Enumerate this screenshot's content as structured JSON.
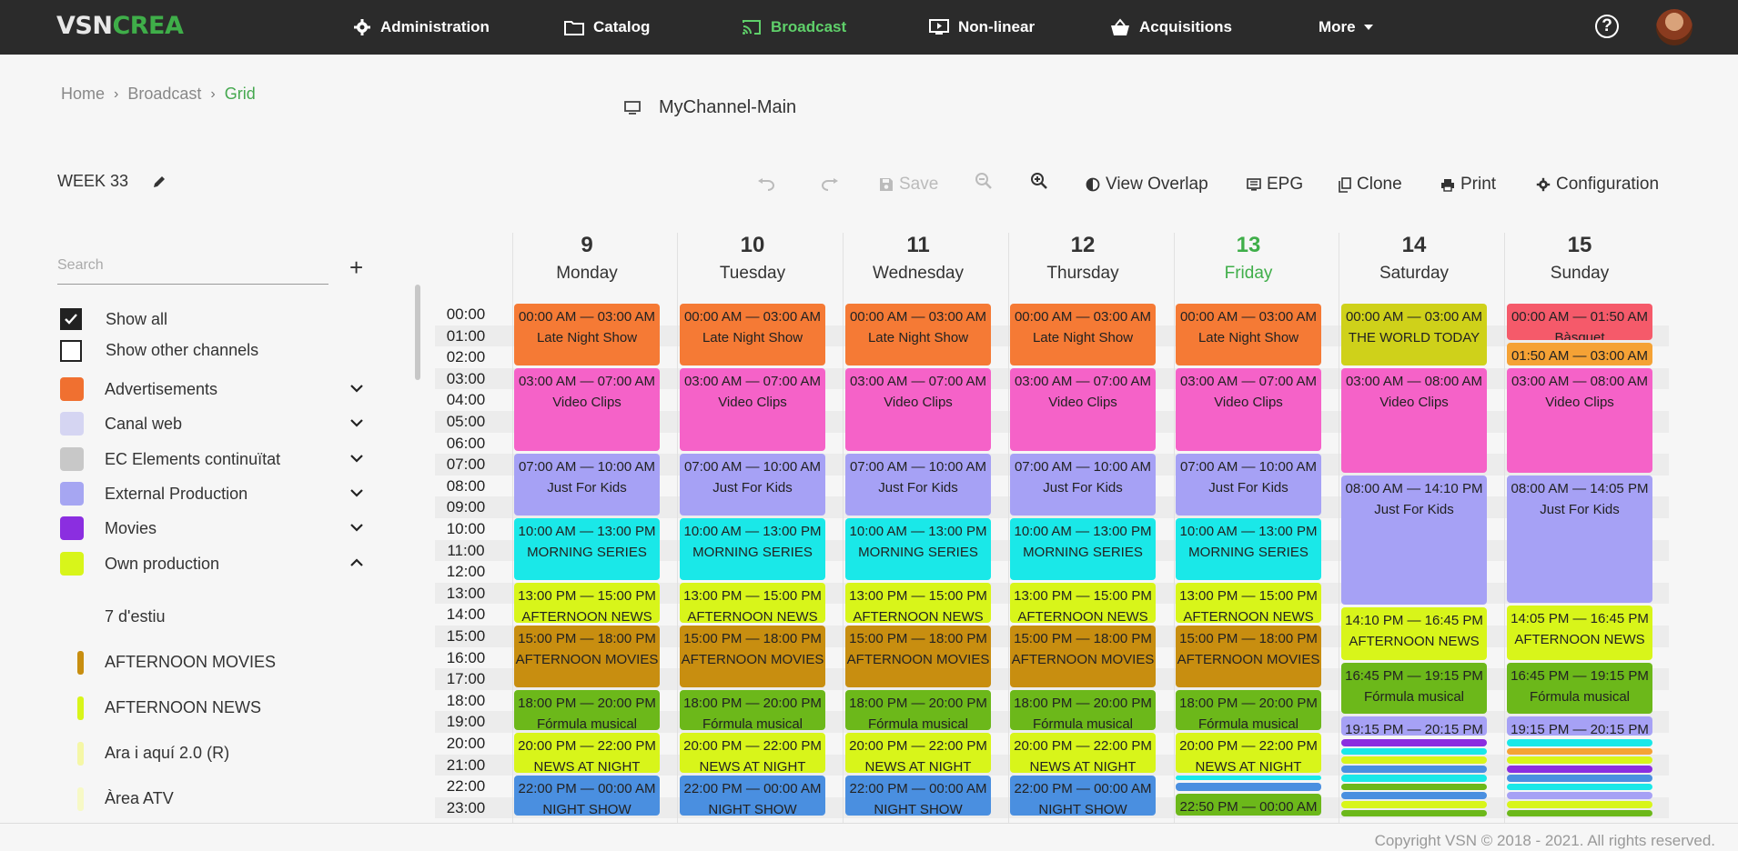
{
  "app": {
    "logo_left": "VSN",
    "logo_right": "CREA",
    "nav": [
      {
        "label": "Administration",
        "icon": "gear-icon"
      },
      {
        "label": "Catalog",
        "icon": "folder-icon"
      },
      {
        "label": "Broadcast",
        "icon": "cast-icon",
        "active": true
      },
      {
        "label": "Non-linear",
        "icon": "play-screen-icon"
      },
      {
        "label": "Acquisitions",
        "icon": "basket-icon"
      },
      {
        "label": "More",
        "icon": "caret-down-icon"
      }
    ],
    "help_label": "?"
  },
  "breadcrumb": {
    "home": "Home",
    "section": "Broadcast",
    "current": "Grid"
  },
  "channel": "MyChannel-Main",
  "week_label": "WEEK 33",
  "toolbar": {
    "save": "Save",
    "view_overlap": "View Overlap",
    "epg": "EPG",
    "clone": "Clone",
    "print": "Print",
    "configuration": "Configuration"
  },
  "sidebar": {
    "search_placeholder": "Search",
    "show_all": "Show all",
    "show_other_channels": "Show other channels",
    "categories": [
      {
        "label": "Advertisements",
        "color": "#f07030",
        "expanded": false
      },
      {
        "label": "Canal web",
        "color": "#d5d5f2",
        "expanded": false
      },
      {
        "label": "EC Elements continuïtat",
        "color": "#c8c8c8",
        "expanded": false
      },
      {
        "label": "External Production",
        "color": "#a6a6f2",
        "expanded": false
      },
      {
        "label": "Movies",
        "color": "#8b2ee0",
        "expanded": false
      },
      {
        "label": "Own production",
        "color": "#d8f51a",
        "expanded": true
      }
    ],
    "programs": [
      {
        "label": "7 d'estiu",
        "color": ""
      },
      {
        "label": "AFTERNOON MOVIES",
        "color": "#c88e10"
      },
      {
        "label": "AFTERNOON NEWS",
        "color": "#d8f51a"
      },
      {
        "label": "Ara i aquí 2.0 (R)",
        "color": "#f5f7a6"
      },
      {
        "label": "Àrea ATV",
        "color": "#f7f9c6"
      }
    ]
  },
  "grid": {
    "days": [
      {
        "num": "9",
        "name": "Monday"
      },
      {
        "num": "10",
        "name": "Tuesday"
      },
      {
        "num": "11",
        "name": "Wednesday"
      },
      {
        "num": "12",
        "name": "Thursday"
      },
      {
        "num": "13",
        "name": "Friday",
        "today": true
      },
      {
        "num": "14",
        "name": "Saturday"
      },
      {
        "num": "15",
        "name": "Sunday"
      }
    ],
    "hours": [
      "00:00",
      "01:00",
      "02:00",
      "03:00",
      "04:00",
      "05:00",
      "06:00",
      "07:00",
      "08:00",
      "09:00",
      "10:00",
      "11:00",
      "12:00",
      "13:00",
      "14:00",
      "15:00",
      "16:00",
      "17:00",
      "18:00",
      "19:00",
      "20:00",
      "21:00",
      "22:00",
      "23:00"
    ],
    "weekday_events": [
      {
        "start": 0,
        "end": 3,
        "time": "00:00 AM — 03:00 AM",
        "title": "Late Night Show",
        "color": "#f57a35"
      },
      {
        "start": 3,
        "end": 7,
        "time": "03:00 AM — 07:00 AM",
        "title": "Video Clips",
        "color": "#f562c8"
      },
      {
        "start": 7,
        "end": 10,
        "time": "07:00 AM — 10:00 AM",
        "title": "Just For Kids",
        "color": "#a6a1f5"
      },
      {
        "start": 10,
        "end": 13,
        "time": "10:00 AM — 13:00 PM",
        "title": "MORNING SERIES",
        "color": "#1ae8e8"
      },
      {
        "start": 13,
        "end": 15,
        "time": "13:00 PM — 15:00 PM",
        "title": "AFTERNOON NEWS",
        "color": "#d8f51a"
      },
      {
        "start": 15,
        "end": 18,
        "time": "15:00 PM — 18:00 PM",
        "title": "AFTERNOON MOVIES",
        "color": "#c88e10"
      },
      {
        "start": 18,
        "end": 20,
        "time": "18:00 PM — 20:00 PM",
        "title": "Fórmula musical",
        "color": "#6cb81a"
      },
      {
        "start": 20,
        "end": 22,
        "time": "20:00 PM — 22:00 PM",
        "title": "NEWS AT NIGHT",
        "color": "#d8f51a"
      },
      {
        "start": 22,
        "end": 24,
        "time": "22:00 PM — 00:00 AM",
        "title": "NIGHT SHOW",
        "color": "#4a8fe0"
      }
    ],
    "friday_extra": [
      {
        "start": 22,
        "end": 22.33,
        "time": "",
        "title": "",
        "color": "#1ae8e8"
      },
      {
        "start": 22.33,
        "end": 22.83,
        "time": "",
        "title": "",
        "color": "#4a8fe0"
      },
      {
        "start": 22.83,
        "end": 24,
        "time": "22:50 PM — 00:00 AM",
        "title": "",
        "color": "#6cb81a"
      }
    ],
    "saturday_events": [
      {
        "start": 0,
        "end": 3,
        "time": "00:00 AM — 03:00 AM",
        "title": "THE WORLD TODAY",
        "color": "#cfd11a"
      },
      {
        "start": 3,
        "end": 8,
        "time": "03:00 AM — 08:00 AM",
        "title": "Video Clips",
        "color": "#f562c8"
      },
      {
        "start": 8,
        "end": 14.17,
        "time": "08:00 AM — 14:10 PM",
        "title": "Just For Kids",
        "color": "#a6a1f5"
      },
      {
        "start": 14.17,
        "end": 16.75,
        "time": "14:10 PM — 16:45 PM",
        "title": "AFTERNOON NEWS",
        "color": "#d8f51a"
      },
      {
        "start": 16.75,
        "end": 19.25,
        "time": "16:45 PM — 19:15 PM",
        "title": "Fórmula musical",
        "color": "#6cb81a"
      },
      {
        "start": 19.25,
        "end": 20.25,
        "time": "19:15 PM — 20:15 PM",
        "title": "",
        "color": "#a6a1f5"
      }
    ],
    "sunday_events": [
      {
        "start": 0,
        "end": 1.83,
        "time": "00:00 AM — 01:50 AM",
        "title": "Bàsquet",
        "color": "#f55a6a"
      },
      {
        "start": 1.83,
        "end": 3,
        "time": "01:50 AM — 03:00 AM",
        "title": "",
        "color": "#f5a235"
      },
      {
        "start": 3,
        "end": 8,
        "time": "03:00 AM — 08:00 AM",
        "title": "Video Clips",
        "color": "#f562c8"
      },
      {
        "start": 8,
        "end": 14.08,
        "time": "08:00 AM — 14:05 PM",
        "title": "Just For Kids",
        "color": "#a6a1f5"
      },
      {
        "start": 14.08,
        "end": 16.75,
        "time": "14:05 PM — 16:45 PM",
        "title": "AFTERNOON NEWS",
        "color": "#d8f51a"
      },
      {
        "start": 16.75,
        "end": 19.25,
        "time": "16:45 PM — 19:15 PM",
        "title": "Fórmula musical",
        "color": "#6cb81a"
      },
      {
        "start": 19.25,
        "end": 20.25,
        "time": "19:15 PM — 20:15 PM",
        "title": "",
        "color": "#a6a1f5"
      }
    ],
    "saturday_tail_colors": [
      "#8b2ee0",
      "#1ae8e8",
      "#d8f51a",
      "#4a8fe0",
      "#1ae8e8",
      "#6cb81a",
      "#4a8fe0",
      "#d8f51a",
      "#6cb81a"
    ],
    "sunday_tail_colors": [
      "#1ae8e8",
      "#f5a235",
      "#d8f51a",
      "#8b2ee0",
      "#4a8fe0",
      "#1ae8e8",
      "#a6a1f5",
      "#d8f51a",
      "#6cb81a"
    ]
  },
  "footer": "Copyright VSN © 2018 - 2021. All rights reserved."
}
